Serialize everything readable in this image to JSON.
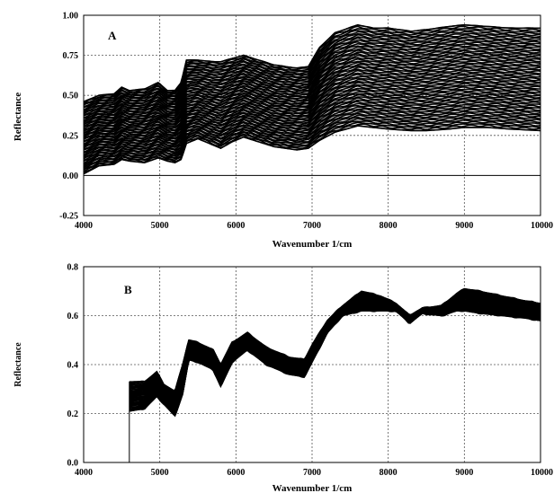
{
  "chart_data": [
    {
      "type": "line",
      "panel_label": "A",
      "xlabel": "Wavenumber 1/cm",
      "ylabel": "Reflectance",
      "xlim": [
        4000,
        10000
      ],
      "ylim": [
        -0.25,
        1.0
      ],
      "x_ticks": [
        4000,
        5000,
        6000,
        7000,
        8000,
        9000,
        10000
      ],
      "y_ticks": [
        -0.25,
        0.0,
        0.25,
        0.5,
        0.75,
        1.0
      ],
      "x_tick_labels": [
        "4000",
        "5000",
        "6000",
        "7000",
        "8000",
        "9000",
        "10000"
      ],
      "y_tick_labels": [
        "-0.25",
        "0.00",
        "0.25",
        "0.50",
        "0.75",
        "1.00"
      ],
      "grid": true,
      "zero_line": true,
      "x": [
        4000,
        4200,
        4400,
        4500,
        4600,
        4800,
        4980,
        5100,
        5200,
        5280,
        5350,
        5500,
        5700,
        5800,
        5950,
        6100,
        6300,
        6500,
        6800,
        6950,
        7100,
        7300,
        7600,
        7800,
        8000,
        8300,
        8500,
        8800,
        9000,
        9300,
        9600,
        10000
      ],
      "envelope_upper": [
        0.46,
        0.5,
        0.51,
        0.55,
        0.53,
        0.54,
        0.58,
        0.53,
        0.53,
        0.58,
        0.72,
        0.72,
        0.71,
        0.71,
        0.73,
        0.75,
        0.72,
        0.69,
        0.67,
        0.68,
        0.8,
        0.89,
        0.94,
        0.92,
        0.92,
        0.9,
        0.91,
        0.93,
        0.94,
        0.93,
        0.92,
        0.92
      ],
      "envelope_lower": [
        0.01,
        0.06,
        0.07,
        0.1,
        0.09,
        0.08,
        0.11,
        0.09,
        0.08,
        0.1,
        0.2,
        0.23,
        0.19,
        0.17,
        0.21,
        0.24,
        0.21,
        0.18,
        0.16,
        0.17,
        0.22,
        0.27,
        0.31,
        0.3,
        0.29,
        0.28,
        0.28,
        0.29,
        0.3,
        0.3,
        0.29,
        0.28
      ]
    },
    {
      "type": "line",
      "panel_label": "B",
      "xlabel": "Wavenumber 1/cm",
      "ylabel": "Reflectance",
      "xlim": [
        4000,
        10000
      ],
      "ylim": [
        0.0,
        0.8
      ],
      "x_ticks": [
        4000,
        5000,
        6000,
        7000,
        8000,
        9000,
        10000
      ],
      "y_ticks": [
        0.0,
        0.2,
        0.4,
        0.6,
        0.8
      ],
      "x_tick_labels": [
        "4000",
        "5000",
        "6000",
        "7000",
        "8000",
        "9000",
        "10000"
      ],
      "y_tick_labels": [
        "0.0",
        "0.2",
        "0.4",
        "0.6",
        "0.8"
      ],
      "grid": true,
      "zero_line": true,
      "start_x": 4600,
      "x": [
        4600,
        4800,
        4960,
        5050,
        5200,
        5300,
        5380,
        5500,
        5700,
        5800,
        5950,
        6150,
        6400,
        6700,
        6900,
        7000,
        7200,
        7400,
        7650,
        7900,
        8100,
        8280,
        8450,
        8700,
        8900,
        9000,
        9200,
        9500,
        9800,
        10000
      ],
      "envelope_upper": [
        0.33,
        0.33,
        0.37,
        0.32,
        0.29,
        0.4,
        0.5,
        0.49,
        0.46,
        0.4,
        0.49,
        0.53,
        0.47,
        0.43,
        0.42,
        0.48,
        0.58,
        0.64,
        0.7,
        0.68,
        0.65,
        0.6,
        0.63,
        0.64,
        0.69,
        0.71,
        0.7,
        0.68,
        0.66,
        0.65
      ],
      "envelope_lower": [
        0.21,
        0.22,
        0.27,
        0.24,
        0.19,
        0.28,
        0.42,
        0.41,
        0.38,
        0.31,
        0.41,
        0.46,
        0.4,
        0.36,
        0.35,
        0.41,
        0.53,
        0.6,
        0.62,
        0.62,
        0.62,
        0.57,
        0.61,
        0.6,
        0.62,
        0.62,
        0.61,
        0.6,
        0.59,
        0.58
      ]
    }
  ]
}
